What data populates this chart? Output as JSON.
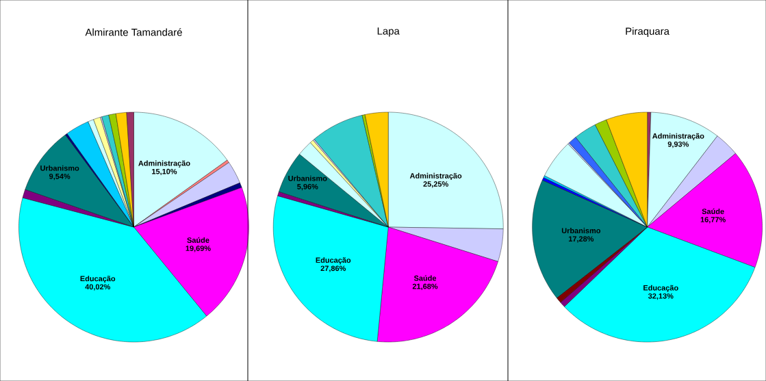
{
  "chart_data": [
    {
      "type": "pie",
      "title": "Almirante Tamandaré",
      "categories": [
        "Administração",
        null,
        null,
        null,
        "Saúde",
        "Educação",
        null,
        "Urbanismo",
        null,
        null,
        null,
        null,
        null,
        null,
        null,
        null,
        null
      ],
      "values": [
        15.1,
        0.4,
        3.2,
        0.7,
        19.69,
        40.02,
        1.2,
        9.54,
        0.3,
        3.35,
        0.8,
        1.0,
        0.2,
        1.0,
        1.0,
        1.5,
        1.0
      ],
      "value_labels": [
        "15,10%",
        null,
        null,
        null,
        "19,69%",
        "40,02%",
        null,
        "9,54%",
        null,
        null,
        null,
        null,
        null,
        null,
        null,
        null,
        null
      ],
      "colors": [
        "#ccffff",
        "#ff8080",
        "#ccccff",
        "#000080",
        "#ff00ff",
        "#00ffff",
        "#800080",
        "#008080",
        "#000080",
        "#00ccff",
        "#ccffff",
        "#ffff99",
        "#ccccff",
        "#33cccc",
        "#99cc00",
        "#ffcc00",
        "#993366"
      ]
    },
    {
      "type": "pie",
      "title": "Lapa",
      "categories": [
        "Administração",
        null,
        "Saúde",
        "Educação",
        null,
        "Urbanismo",
        null,
        null,
        null,
        null,
        null,
        null
      ],
      "values": [
        25.25,
        4.6,
        21.68,
        27.86,
        0.6,
        5.96,
        2.2,
        0.5,
        0.2,
        7.5,
        0.4,
        3.25
      ],
      "value_labels": [
        "25,25%",
        null,
        "21,68%",
        "27,86%",
        null,
        "5,96%",
        null,
        null,
        null,
        null,
        null,
        null
      ],
      "colors": [
        "#ccffff",
        "#ccccff",
        "#ff00ff",
        "#00ffff",
        "#800080",
        "#008080",
        "#ccffff",
        "#ffff99",
        "#ccccff",
        "#33cccc",
        "#99cc00",
        "#ffcc00"
      ]
    },
    {
      "type": "pie",
      "title": "Piraquara",
      "categories": [
        null,
        "Administração",
        null,
        "Saúde",
        "Educação",
        null,
        null,
        "Urbanismo",
        null,
        null,
        null,
        null,
        null,
        null,
        null,
        null
      ],
      "values": [
        0.5,
        9.93,
        3.5,
        16.77,
        32.13,
        0.8,
        0.8,
        17.28,
        0.4,
        0.3,
        5.5,
        0.2,
        1.2,
        3.2,
        1.7,
        5.8
      ],
      "value_labels": [
        null,
        "9,93%",
        null,
        "16,77%",
        "32,13%",
        null,
        null,
        "17,28%",
        null,
        null,
        null,
        null,
        null,
        null,
        null,
        null
      ],
      "colors": [
        "#993366",
        "#ccffff",
        "#ccccff",
        "#ff00ff",
        "#00ffff",
        "#800080",
        "#800000",
        "#008080",
        "#0000ff",
        "#00ccff",
        "#ccffff",
        "#ccccff",
        "#3366ff",
        "#33cccc",
        "#99cc00",
        "#ffcc00"
      ]
    }
  ]
}
